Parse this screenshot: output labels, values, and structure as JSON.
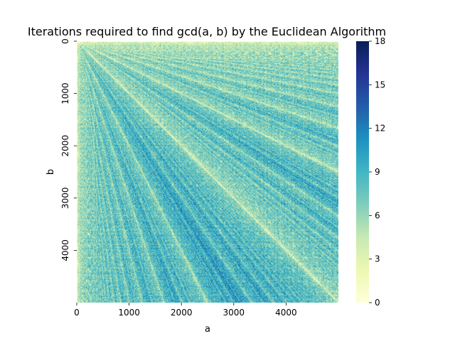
{
  "chart_data": {
    "type": "heatmap",
    "title": "Iterations required to find gcd(a, b) by the Euclidean Algorithm",
    "xlabel": "a",
    "ylabel": "b",
    "x_range": [
      0,
      5000
    ],
    "y_range": [
      0,
      5000
    ],
    "x_ticks": [
      0,
      1000,
      2000,
      3000,
      4000
    ],
    "y_ticks": [
      0,
      1000,
      2000,
      3000,
      4000
    ],
    "y_axis_inverted": true,
    "value_function": "number of Euclidean algorithm steps to compute gcd(a, b)",
    "colorbar": {
      "min": 0,
      "max": 18,
      "ticks": [
        0,
        3,
        6,
        9,
        12,
        15,
        18
      ],
      "colormap": "YlGnBu",
      "stops": [
        "#ffffd9",
        "#edf8b1",
        "#c7e9b4",
        "#7fcdbb",
        "#41b6c4",
        "#1d91c0",
        "#225ea8",
        "#253494",
        "#081d58"
      ]
    }
  }
}
